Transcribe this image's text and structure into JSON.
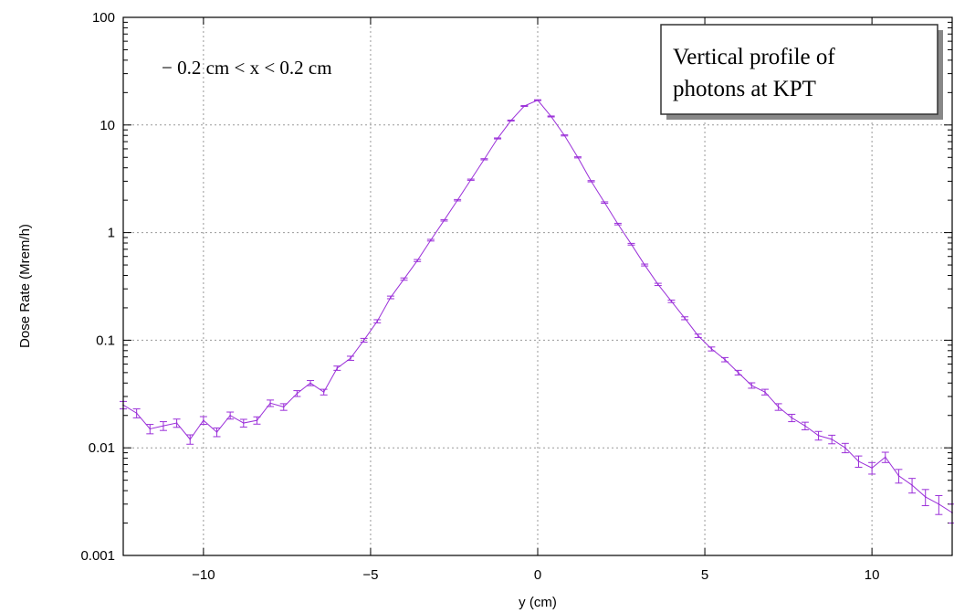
{
  "chart_data": {
    "type": "line",
    "title": "",
    "xlabel": "y (cm)",
    "ylabel": "Dose Rate (Mrem/h)",
    "xlim": [
      -12.4,
      12.4
    ],
    "ylim": [
      0.001,
      100
    ],
    "yscale": "log",
    "grid": true,
    "x_ticks": [
      -10,
      -5,
      0,
      5,
      10
    ],
    "x_tick_labels": [
      "−10",
      "−5",
      "0",
      "5",
      "10"
    ],
    "y_ticks": [
      0.001,
      0.01,
      0.1,
      1,
      10,
      100
    ],
    "y_tick_labels": [
      "0.001",
      "0.01",
      "0.1",
      "1",
      "10",
      "100"
    ],
    "annotation": "− 0.2 cm < x < 0.2 cm",
    "box_lines": [
      "Vertical profile of",
      "photons at KPT"
    ],
    "series_color": "#9b30d9",
    "series": [
      {
        "x": [
          -12.4,
          -12.0,
          -11.6,
          -11.2,
          -10.8,
          -10.4,
          -10.0,
          -9.6,
          -9.2,
          -8.8,
          -8.4,
          -8.0,
          -7.6,
          -7.2,
          -6.8,
          -6.4,
          -6.0,
          -5.6,
          -5.2,
          -4.8,
          -4.4,
          -4.0,
          -3.6,
          -3.2,
          -2.8,
          -2.4,
          -2.0,
          -1.6,
          -1.2,
          -0.8,
          -0.4,
          0.0,
          0.4,
          0.8,
          1.2,
          1.6,
          2.0,
          2.4,
          2.8,
          3.2,
          3.6,
          4.0,
          4.4,
          4.8,
          5.2,
          5.6,
          6.0,
          6.4,
          6.8,
          7.2,
          7.6,
          8.0,
          8.4,
          8.8,
          9.2,
          9.6,
          10.0,
          10.4,
          10.8,
          11.2,
          11.6,
          12.0,
          12.4
        ],
        "y": [
          0.025,
          0.021,
          0.015,
          0.016,
          0.017,
          0.012,
          0.018,
          0.014,
          0.02,
          0.017,
          0.018,
          0.026,
          0.024,
          0.032,
          0.04,
          0.033,
          0.055,
          0.068,
          0.1,
          0.15,
          0.25,
          0.37,
          0.55,
          0.85,
          1.3,
          2.0,
          3.1,
          4.8,
          7.5,
          11.0,
          15.0,
          17.0,
          12.0,
          8.0,
          5.0,
          3.0,
          1.9,
          1.2,
          0.78,
          0.5,
          0.33,
          0.23,
          0.16,
          0.11,
          0.083,
          0.066,
          0.05,
          0.038,
          0.033,
          0.024,
          0.019,
          0.016,
          0.013,
          0.012,
          0.01,
          0.0075,
          0.0065,
          0.0082,
          0.0055,
          0.0045,
          0.0035,
          0.003,
          0.0025
        ],
        "err": [
          0.002,
          0.002,
          0.0015,
          0.0015,
          0.0015,
          0.0012,
          0.0015,
          0.0013,
          0.0015,
          0.0014,
          0.0014,
          0.0018,
          0.0017,
          0.002,
          0.0022,
          0.002,
          0.0025,
          0.003,
          0.004,
          0.005,
          0.007,
          0.009,
          0.012,
          0.015,
          0.02,
          0.03,
          0.04,
          0.06,
          0.08,
          0.11,
          0.14,
          0.15,
          0.12,
          0.09,
          0.06,
          0.04,
          0.03,
          0.02,
          0.014,
          0.01,
          0.008,
          0.006,
          0.005,
          0.004,
          0.0035,
          0.003,
          0.0025,
          0.0022,
          0.002,
          0.0017,
          0.0015,
          0.0013,
          0.0012,
          0.0011,
          0.001,
          0.0009,
          0.0008,
          0.0009,
          0.0008,
          0.0007,
          0.0006,
          0.0006,
          0.0005
        ]
      }
    ]
  }
}
